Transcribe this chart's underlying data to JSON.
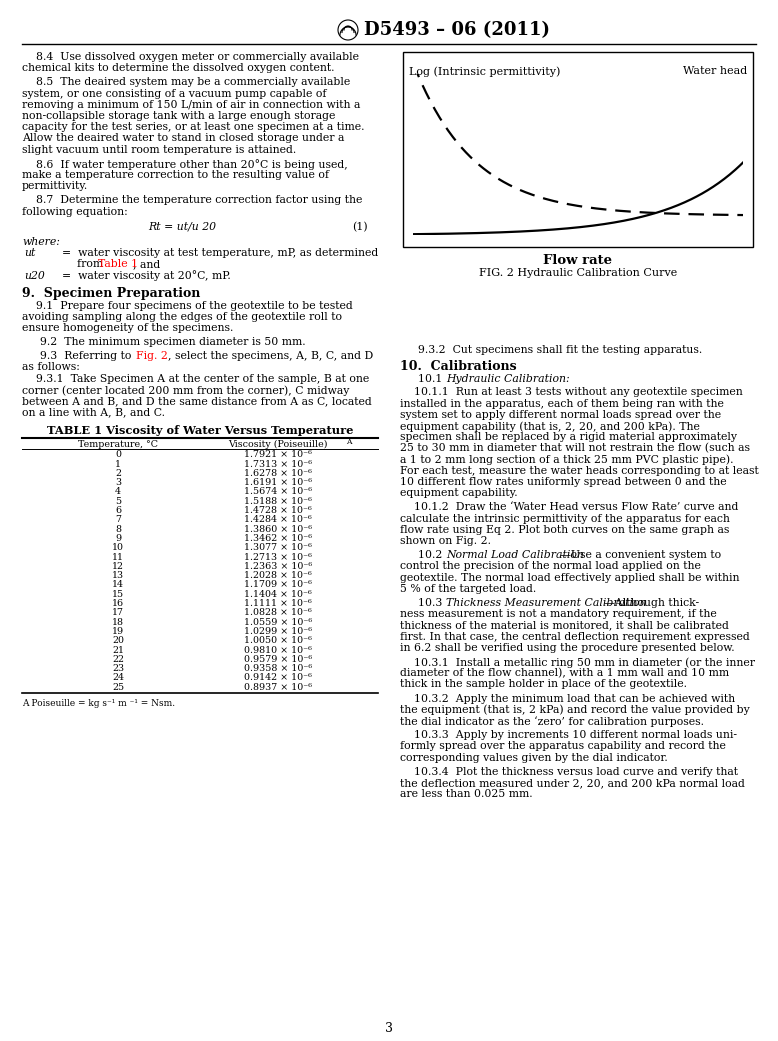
{
  "title": "D5493 – 06 (2011)",
  "page_number": "3",
  "background_color": "#ffffff",
  "fig_label": "Log (Intrinsic permittivity)",
  "fig_label2": "Water head",
  "fig_xlabel": "Flow rate",
  "fig_caption": "FIG. 2 Hydraulic Calibration Curve",
  "table_title": "TABLE 1 Viscosity of Water Versus Temperature",
  "table_col1_header": "Temperature, °C",
  "table_col2_header": "Viscosity (Poiseuille)A",
  "table_footnote": "A Poiseuille = kg s⁻¹ m ⁻¹ = Nsm.",
  "table_data": [
    [
      0,
      "1.7921 × 10⁻⁶"
    ],
    [
      1,
      "1.7313 × 10⁻⁶"
    ],
    [
      2,
      "1.6278 × 10⁻⁶"
    ],
    [
      3,
      "1.6191 × 10⁻⁶"
    ],
    [
      4,
      "1.5674 × 10⁻⁶"
    ],
    [
      5,
      "1.5188 × 10⁻⁶"
    ],
    [
      6,
      "1.4728 × 10⁻⁶"
    ],
    [
      7,
      "1.4284 × 10⁻⁶"
    ],
    [
      8,
      "1.3860 × 10⁻⁶"
    ],
    [
      9,
      "1.3462 × 10⁻⁶"
    ],
    [
      10,
      "1.3077 × 10⁻⁶"
    ],
    [
      11,
      "1.2713 × 10⁻⁶"
    ],
    [
      12,
      "1.2363 × 10⁻⁶"
    ],
    [
      13,
      "1.2028 × 10⁻⁶"
    ],
    [
      14,
      "1.1709 × 10⁻⁶"
    ],
    [
      15,
      "1.1404 × 10⁻⁶"
    ],
    [
      16,
      "1.1111 × 10⁻⁶"
    ],
    [
      17,
      "1.0828 × 10⁻⁶"
    ],
    [
      18,
      "1.0559 × 10⁻⁶"
    ],
    [
      19,
      "1.0299 × 10⁻⁶"
    ],
    [
      20,
      "1.0050 × 10⁻⁶"
    ],
    [
      21,
      "0.9810 × 10⁻⁶"
    ],
    [
      22,
      "0.9579 × 10⁻⁶"
    ],
    [
      23,
      "0.9358 × 10⁻⁶"
    ],
    [
      24,
      "0.9142 × 10⁻⁶"
    ],
    [
      25,
      "0.8937 × 10⁻⁶"
    ]
  ]
}
